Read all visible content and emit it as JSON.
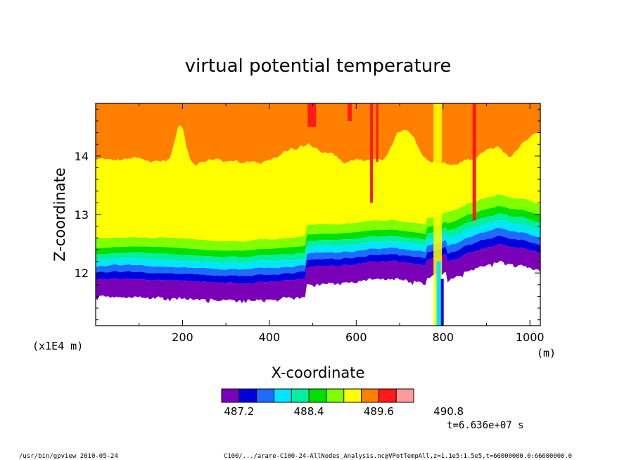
{
  "chart_data": {
    "type": "heatmap",
    "title": "virtual potential temperature",
    "xlabel": "X-coordinate",
    "ylabel": "Z-coordinate",
    "x_unit": "(m)",
    "y_unit": "(x1E4 m)",
    "xlim": [
      0,
      1024
    ],
    "ylim": [
      11.1,
      14.9
    ],
    "x_ticks": [
      200,
      400,
      600,
      800,
      1000
    ],
    "y_ticks": [
      12,
      13,
      14
    ],
    "colorbar": {
      "levels": [
        487.0,
        487.2,
        487.5,
        487.8,
        488.1,
        488.4,
        488.7,
        489.0,
        489.3,
        489.6,
        489.9,
        490.2,
        490.5,
        490.8,
        491.1
      ],
      "colors": [
        "#7a00b8",
        "#0000dd",
        "#1e6cff",
        "#00e6ff",
        "#00f0a0",
        "#00e000",
        "#80ff00",
        "#ffff00",
        "#ff8000",
        "#ff1a1a",
        "#ff9a9a"
      ],
      "tick_labels": [
        "487.2",
        "488.4",
        "489.6",
        "490.8"
      ]
    },
    "time_label": "t=6.636e+07 s",
    "grid": false
  },
  "footer": {
    "left": "/usr/bin/gpview   2010-05-24",
    "right": "C100/.../arare-C100-24-AllNodes_Analysis.nc@VPotTempAll,z=1.1e5:1.5e5,t=66000000.0:66600000.0"
  }
}
